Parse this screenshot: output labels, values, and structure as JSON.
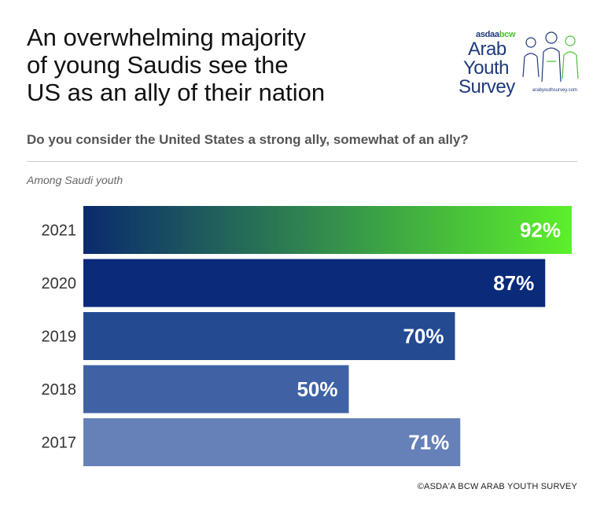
{
  "header": {
    "title": "An overwhelming majority\nof young Saudis see the\nUS as an ally of their nation",
    "question": "Do you consider the United States a strong ally, somewhat of an ally?",
    "subtitle": "Among Saudi youth"
  },
  "logo": {
    "brand_main": "asdaa",
    "brand_accent": "bcw",
    "line1": "Arab",
    "line2": "Youth",
    "line3": "Survey",
    "url": "arabyouthsurvey.com"
  },
  "footer": {
    "credit": "©ASDA'A BCW ARAB YOUTH SURVEY"
  },
  "colors": {
    "bar_2021_start": "#0a2a6e",
    "bar_2021_end": "#5cf02a",
    "bar_2020": "#0a2a7a",
    "bar_2019": "#244a92",
    "bar_2018": "#3f62a5",
    "bar_2017": "#6680b8"
  },
  "chart_data": {
    "type": "bar",
    "orientation": "horizontal",
    "categories": [
      "2021",
      "2020",
      "2019",
      "2018",
      "2017"
    ],
    "values": [
      92,
      87,
      70,
      50,
      71
    ],
    "value_labels": [
      "92%",
      "87%",
      "70%",
      "50%",
      "71%"
    ],
    "xlim": [
      0,
      100
    ],
    "grid": false
  }
}
